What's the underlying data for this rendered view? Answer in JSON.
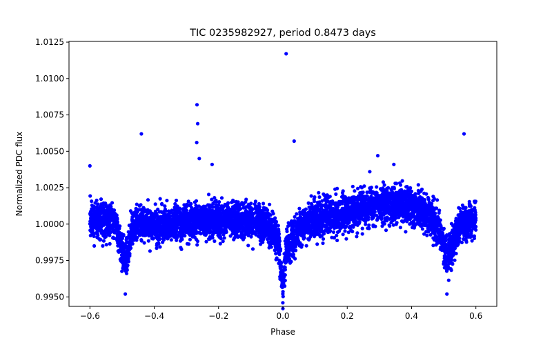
{
  "chart_data": {
    "type": "scatter",
    "title": "TIC 0235982927, period 0.8473 days",
    "xlabel": "Phase",
    "ylabel": "Normalized PDC flux",
    "xlim": [
      -0.665,
      0.665
    ],
    "ylim": [
      0.99435,
      1.01255
    ],
    "xticks": [
      -0.6,
      -0.4,
      -0.2,
      0.0,
      0.2,
      0.4,
      0.6
    ],
    "xtick_labels": [
      "−0.6",
      "−0.4",
      "−0.2",
      "0.0",
      "0.2",
      "0.4",
      "0.6"
    ],
    "yticks": [
      0.995,
      0.9975,
      1.0,
      1.0025,
      1.005,
      1.0075,
      1.01,
      1.0125
    ],
    "ytick_labels": [
      "0.9950",
      "0.9975",
      "1.0000",
      "1.0025",
      "1.0050",
      "1.0075",
      "1.0100",
      "1.0125"
    ],
    "grid": false,
    "legend": "none",
    "series": [
      {
        "color": "#0000ff",
        "marker": "circle",
        "profile_phase": [
          -0.6,
          -0.55,
          -0.52,
          -0.5,
          -0.49,
          -0.48,
          -0.47,
          -0.45,
          -0.4,
          -0.3,
          -0.2,
          -0.1,
          -0.05,
          -0.02,
          -0.01,
          0.0,
          0.01,
          0.02,
          0.05,
          0.1,
          0.2,
          0.3,
          0.35,
          0.4,
          0.45,
          0.48,
          0.5,
          0.51,
          0.52,
          0.55,
          0.6
        ],
        "profile_flux": [
          1.0003,
          1.0003,
          1.0,
          0.9982,
          0.9975,
          0.9983,
          0.9995,
          1.0001,
          0.9999,
          1.0001,
          1.0003,
          1.0001,
          1.0,
          0.9992,
          0.998,
          0.9958,
          0.998,
          0.9988,
          0.9996,
          1.0003,
          1.0008,
          1.0013,
          1.0014,
          1.0012,
          1.0008,
          1.0,
          0.9985,
          0.9975,
          0.9982,
          1.0,
          1.0003
        ],
        "scatter_sigma": 0.0006,
        "outliers": [
          [
            0.01,
            1.0117
          ],
          [
            -0.267,
            1.0082
          ],
          [
            -0.265,
            1.0069
          ],
          [
            -0.268,
            1.0056
          ],
          [
            -0.44,
            1.0062
          ],
          [
            0.563,
            1.0062
          ],
          [
            0.035,
            1.0057
          ],
          [
            0.295,
            1.0047
          ],
          [
            -0.26,
            1.0045
          ],
          [
            -0.6,
            1.004
          ],
          [
            -0.22,
            1.0041
          ],
          [
            0.345,
            1.0041
          ],
          [
            0.27,
            1.0036
          ],
          [
            -0.49,
            0.9952
          ],
          [
            0.51,
            0.9952
          ],
          [
            0.0,
            0.9942
          ]
        ]
      }
    ]
  }
}
